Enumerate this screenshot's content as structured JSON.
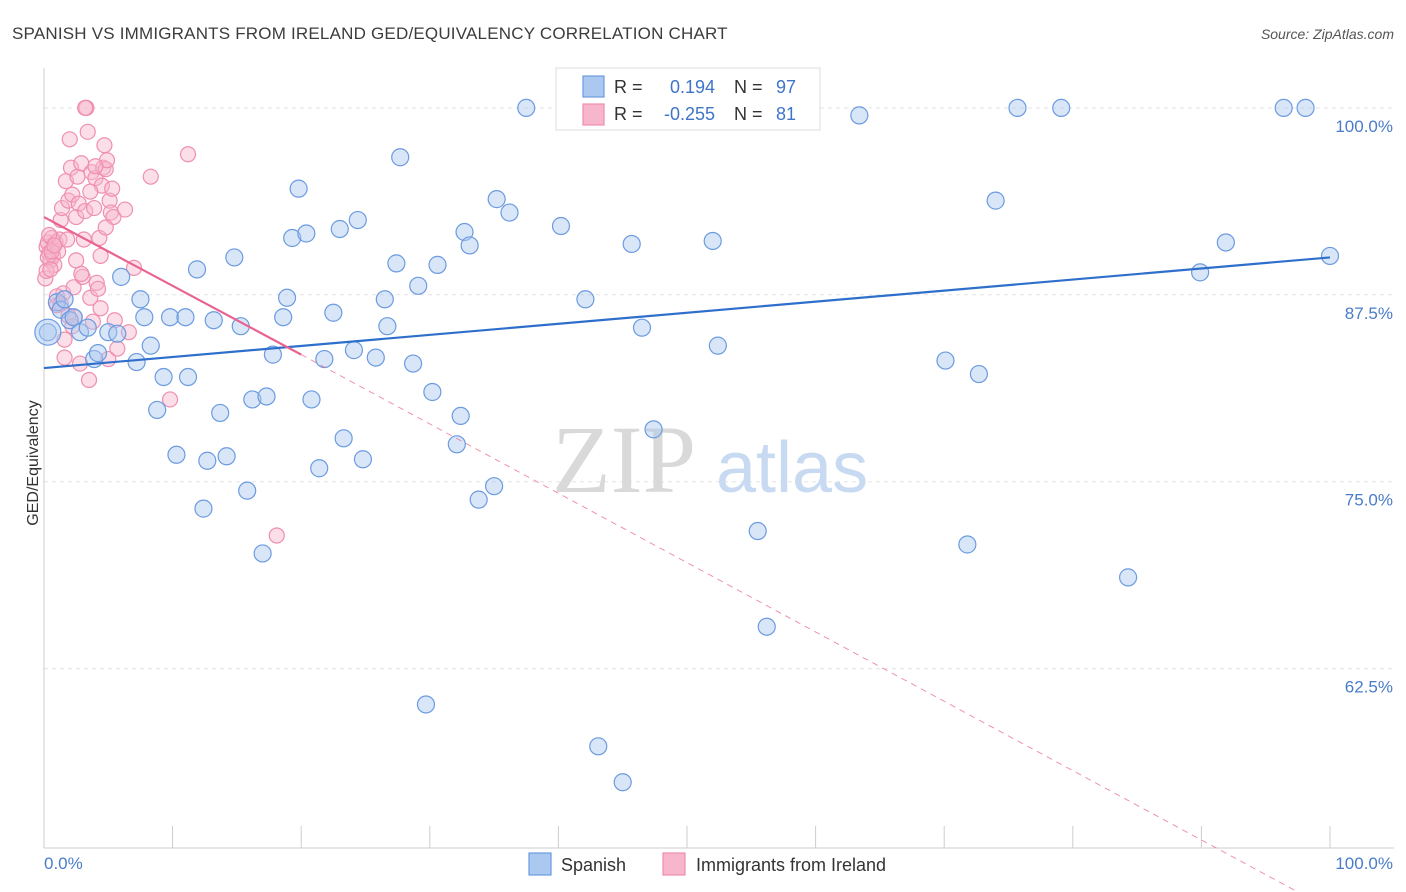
{
  "title": "SPANISH VS IMMIGRANTS FROM IRELAND GED/EQUIVALENCY CORRELATION CHART",
  "source": "Source: ZipAtlas.com",
  "watermark": {
    "zip": "ZIP",
    "atlas": "atlas"
  },
  "colors": {
    "spanish_fill": "#aac8f0",
    "spanish_stroke": "#6b9be0",
    "spanish_line": "#2f6fcc",
    "ireland_fill": "#f7b6cb",
    "ireland_stroke": "#ef8fae",
    "ireland_line": "#e8648f",
    "grid": "#e3e3e3",
    "axis_text": "#4a7cc9"
  },
  "stats": {
    "spanish": {
      "r_label": "R =",
      "r_value": "0.194",
      "n_label": "N =",
      "n_value": "97"
    },
    "ireland": {
      "r_label": "R =",
      "r_value": "-0.255",
      "n_label": "N =",
      "n_value": "81"
    }
  },
  "chart_data": {
    "type": "scatter",
    "xlabel": "",
    "ylabel": "GED/Equivalency",
    "xlim": [
      0,
      100
    ],
    "ylim": [
      50.5,
      102
    ],
    "x_tick_labels": [
      "0.0%",
      "100.0%"
    ],
    "y_ticks": [
      62.5,
      75.0,
      87.5,
      100.0
    ],
    "y_tick_labels": [
      "62.5%",
      "75.0%",
      "87.5%",
      "100.0%"
    ],
    "grid": true,
    "legend": "bottom-center",
    "series": [
      {
        "name": "Spanish",
        "trend": {
          "x0": 0,
          "y0": 82.6,
          "x1": 100,
          "y1": 90.0
        },
        "points": [
          [
            0.3,
            85.0
          ],
          [
            1.0,
            87.0
          ],
          [
            1.3,
            86.5
          ],
          [
            1.6,
            87.2
          ],
          [
            2.0,
            85.8
          ],
          [
            2.3,
            86.0
          ],
          [
            2.8,
            85.0
          ],
          [
            3.4,
            85.3
          ],
          [
            3.9,
            83.2
          ],
          [
            4.2,
            83.6
          ],
          [
            5.0,
            85.0
          ],
          [
            5.7,
            84.9
          ],
          [
            6.0,
            88.7
          ],
          [
            7.2,
            83.0
          ],
          [
            7.5,
            87.2
          ],
          [
            7.8,
            86.0
          ],
          [
            8.3,
            84.1
          ],
          [
            8.8,
            79.8
          ],
          [
            9.3,
            82.0
          ],
          [
            9.8,
            86.0
          ],
          [
            10.3,
            76.8
          ],
          [
            11.0,
            86.0
          ],
          [
            11.2,
            82.0
          ],
          [
            11.9,
            89.2
          ],
          [
            12.4,
            73.2
          ],
          [
            12.7,
            76.4
          ],
          [
            13.2,
            85.8
          ],
          [
            13.7,
            79.6
          ],
          [
            14.2,
            76.7
          ],
          [
            14.8,
            90.0
          ],
          [
            15.3,
            85.4
          ],
          [
            15.8,
            74.4
          ],
          [
            16.2,
            80.5
          ],
          [
            17.0,
            70.2
          ],
          [
            17.3,
            80.7
          ],
          [
            17.8,
            83.5
          ],
          [
            18.6,
            86.0
          ],
          [
            18.9,
            87.3
          ],
          [
            19.3,
            91.3
          ],
          [
            19.8,
            94.6
          ],
          [
            20.4,
            91.6
          ],
          [
            20.8,
            80.5
          ],
          [
            21.4,
            75.9
          ],
          [
            21.8,
            83.2
          ],
          [
            22.5,
            86.3
          ],
          [
            23.0,
            91.9
          ],
          [
            23.3,
            77.9
          ],
          [
            24.1,
            83.8
          ],
          [
            24.4,
            92.5
          ],
          [
            24.8,
            76.5
          ],
          [
            25.8,
            83.3
          ],
          [
            26.5,
            87.2
          ],
          [
            26.7,
            85.4
          ],
          [
            27.4,
            89.6
          ],
          [
            27.7,
            96.7
          ],
          [
            28.7,
            82.9
          ],
          [
            29.1,
            88.1
          ],
          [
            29.7,
            60.1
          ],
          [
            30.2,
            81.0
          ],
          [
            30.6,
            89.5
          ],
          [
            32.1,
            77.5
          ],
          [
            32.4,
            79.4
          ],
          [
            32.7,
            91.7
          ],
          [
            33.1,
            90.8
          ],
          [
            33.8,
            73.8
          ],
          [
            35.0,
            74.7
          ],
          [
            35.2,
            93.9
          ],
          [
            36.2,
            93.0
          ],
          [
            37.5,
            100.0
          ],
          [
            40.2,
            92.1
          ],
          [
            41.0,
            100.0
          ],
          [
            42.1,
            87.2
          ],
          [
            43.1,
            57.3
          ],
          [
            45.0,
            54.9
          ],
          [
            45.7,
            90.9
          ],
          [
            46.5,
            85.3
          ],
          [
            47.4,
            78.5
          ],
          [
            52.0,
            91.1
          ],
          [
            52.4,
            84.1
          ],
          [
            55.5,
            71.7
          ],
          [
            56.2,
            65.3
          ],
          [
            56.8,
            100.0
          ],
          [
            63.4,
            99.5
          ],
          [
            70.1,
            83.1
          ],
          [
            71.8,
            70.8
          ],
          [
            72.7,
            82.2
          ],
          [
            74.0,
            93.8
          ],
          [
            75.7,
            100.0
          ],
          [
            79.1,
            100.0
          ],
          [
            84.3,
            68.6
          ],
          [
            89.9,
            89.0
          ],
          [
            91.9,
            91.0
          ],
          [
            96.4,
            100.0
          ],
          [
            98.1,
            100.0
          ],
          [
            100.0,
            90.1
          ]
        ]
      },
      {
        "name": "Immigrants from Ireland",
        "trend": {
          "x0": 0,
          "y0": 92.7,
          "x1": 20,
          "y1": 83.5
        },
        "trend_dashed": {
          "x0": 20,
          "y0": 83.5,
          "x1": 100,
          "y1": 46.4
        },
        "points": [
          [
            0.2,
            90.7
          ],
          [
            0.3,
            91.0
          ],
          [
            0.4,
            90.3
          ],
          [
            0.5,
            89.8
          ],
          [
            0.6,
            91.3
          ],
          [
            0.7,
            90.1
          ],
          [
            0.8,
            89.5
          ],
          [
            0.9,
            91.0
          ],
          [
            1.0,
            86.8
          ],
          [
            1.1,
            90.4
          ],
          [
            1.2,
            91.2
          ],
          [
            1.3,
            92.5
          ],
          [
            1.4,
            93.3
          ],
          [
            1.5,
            87.6
          ],
          [
            1.6,
            83.3
          ],
          [
            1.7,
            95.1
          ],
          [
            1.8,
            91.2
          ],
          [
            1.9,
            93.8
          ],
          [
            2.0,
            97.9
          ],
          [
            2.1,
            96.0
          ],
          [
            2.2,
            94.2
          ],
          [
            2.3,
            88.0
          ],
          [
            2.4,
            86.0
          ],
          [
            2.5,
            92.7
          ],
          [
            2.6,
            95.4
          ],
          [
            2.7,
            93.6
          ],
          [
            2.8,
            82.9
          ],
          [
            2.9,
            96.3
          ],
          [
            3.0,
            88.7
          ],
          [
            3.1,
            91.2
          ],
          [
            3.2,
            93.1
          ],
          [
            3.3,
            100.0
          ],
          [
            3.4,
            98.4
          ],
          [
            3.5,
            81.8
          ],
          [
            3.6,
            87.3
          ],
          [
            3.7,
            95.7
          ],
          [
            3.8,
            85.7
          ],
          [
            3.9,
            93.3
          ],
          [
            4.0,
            95.3
          ],
          [
            4.1,
            88.3
          ],
          [
            4.2,
            87.9
          ],
          [
            4.3,
            91.3
          ],
          [
            4.4,
            90.1
          ],
          [
            4.5,
            94.8
          ],
          [
            4.6,
            96.0
          ],
          [
            4.7,
            97.5
          ],
          [
            4.8,
            95.9
          ],
          [
            4.9,
            96.5
          ],
          [
            5.0,
            83.2
          ],
          [
            5.1,
            93.8
          ],
          [
            5.2,
            93.0
          ],
          [
            5.3,
            94.6
          ],
          [
            5.4,
            92.7
          ],
          [
            5.5,
            85.8
          ],
          [
            5.7,
            83.9
          ],
          [
            6.3,
            93.2
          ],
          [
            6.6,
            85.0
          ],
          [
            7.0,
            89.3
          ],
          [
            8.3,
            95.4
          ],
          [
            9.8,
            80.5
          ],
          [
            11.2,
            96.9
          ],
          [
            18.1,
            71.4
          ],
          [
            0.1,
            88.6
          ],
          [
            0.2,
            89.1
          ],
          [
            0.3,
            90.0
          ],
          [
            0.4,
            91.5
          ],
          [
            0.6,
            90.4
          ],
          [
            0.8,
            90.8
          ],
          [
            1.0,
            87.4
          ],
          [
            1.3,
            86.9
          ],
          [
            1.6,
            84.5
          ],
          [
            1.9,
            86.1
          ],
          [
            2.2,
            85.4
          ],
          [
            2.5,
            89.8
          ],
          [
            2.9,
            88.9
          ],
          [
            3.2,
            100.0
          ],
          [
            3.6,
            94.4
          ],
          [
            4.0,
            96.1
          ],
          [
            4.4,
            86.6
          ],
          [
            4.8,
            92.0
          ],
          [
            0.5,
            89.2
          ]
        ]
      }
    ]
  },
  "legend": {
    "items": [
      {
        "label": "Spanish"
      },
      {
        "label": "Immigrants from Ireland"
      }
    ]
  }
}
